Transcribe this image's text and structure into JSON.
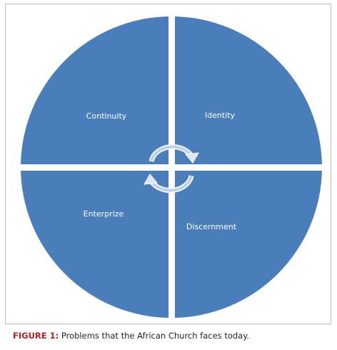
{
  "diagram": {
    "quadrants": [
      {
        "label": "Continuity"
      },
      {
        "label": "Identity"
      },
      {
        "label": "Enterprize"
      },
      {
        "label": "Discernment"
      }
    ],
    "caption": {
      "label": "FIGURE 1:",
      "text": "Problems that the African Church faces today."
    }
  }
}
